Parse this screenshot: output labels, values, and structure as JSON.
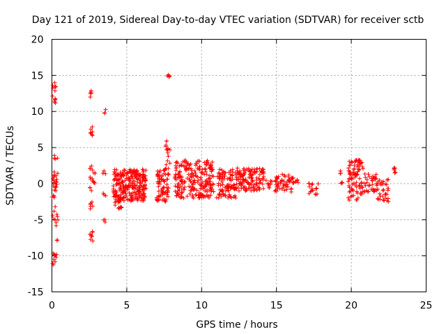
{
  "chart_data": {
    "type": "scatter",
    "title": "Day 121 of 2019, Sidereal Day-to-day VTEC variation (SDTVAR) for receiver sctb",
    "xlabel": "GPS time / hours",
    "ylabel": "SDTVAR / TECUs",
    "xlim": [
      0,
      25
    ],
    "ylim": [
      -15,
      20
    ],
    "xticks": [
      0,
      5,
      10,
      15,
      20,
      25
    ],
    "yticks": [
      -15,
      -10,
      -5,
      0,
      5,
      10,
      15,
      20
    ],
    "grid": true,
    "marker": "+",
    "color": "#ff0000",
    "series": [
      {
        "name": "SDTVAR",
        "clusters": [
          {
            "x": [
              0.0,
              0.3
            ],
            "y": [
              10.5,
              14.0
            ],
            "n": 12
          },
          {
            "x": [
              0.0,
              0.4
            ],
            "y": [
              -1.0,
              4.2
            ],
            "n": 22
          },
          {
            "x": [
              0.0,
              0.2
            ],
            "y": [
              -2.3,
              -1.5
            ],
            "n": 4
          },
          {
            "x": [
              0.05,
              0.4
            ],
            "y": [
              -7.0,
              -3.0
            ],
            "n": 10
          },
          {
            "x": [
              0.05,
              0.45
            ],
            "y": [
              -11.8,
              -9.5
            ],
            "n": 10
          },
          {
            "x": [
              0.2,
              0.4
            ],
            "y": [
              -8.2,
              -7.8
            ],
            "n": 2
          },
          {
            "x": [
              2.5,
              2.7
            ],
            "y": [
              12.0,
              13.0
            ],
            "n": 5
          },
          {
            "x": [
              2.5,
              2.8
            ],
            "y": [
              6.5,
              8.0
            ],
            "n": 7
          },
          {
            "x": [
              2.5,
              2.9
            ],
            "y": [
              -1.0,
              2.5
            ],
            "n": 16
          },
          {
            "x": [
              2.5,
              2.8
            ],
            "y": [
              -3.8,
              -2.5
            ],
            "n": 6
          },
          {
            "x": [
              2.5,
              2.8
            ],
            "y": [
              -8.0,
              -6.0
            ],
            "n": 8
          },
          {
            "x": [
              3.4,
              3.6
            ],
            "y": [
              9.5,
              10.3
            ],
            "n": 3
          },
          {
            "x": [
              3.4,
              3.6
            ],
            "y": [
              1.2,
              1.8
            ],
            "n": 3
          },
          {
            "x": [
              3.4,
              3.6
            ],
            "y": [
              -1.7,
              -1.3
            ],
            "n": 3
          },
          {
            "x": [
              3.4,
              3.6
            ],
            "y": [
              -5.6,
              -5.0
            ],
            "n": 3
          },
          {
            "x": [
              4.1,
              6.3
            ],
            "y": [
              -2.4,
              2.0
            ],
            "n": 260
          },
          {
            "x": [
              4.2,
              4.7
            ],
            "y": [
              -3.5,
              -2.0
            ],
            "n": 15
          },
          {
            "x": [
              7.0,
              7.8
            ],
            "y": [
              -2.5,
              2.3
            ],
            "n": 75
          },
          {
            "x": [
              7.6,
              7.9
            ],
            "y": [
              2.5,
              6.0
            ],
            "n": 14
          },
          {
            "x": [
              7.7,
              7.9
            ],
            "y": [
              14.6,
              15.1
            ],
            "n": 6
          },
          {
            "x": [
              8.2,
              10.8
            ],
            "y": [
              -2.0,
              3.3
            ],
            "n": 230
          },
          {
            "x": [
              11.0,
              12.3
            ],
            "y": [
              -2.0,
              2.0
            ],
            "n": 90
          },
          {
            "x": [
              12.3,
              14.2
            ],
            "y": [
              -1.0,
              2.2
            ],
            "n": 130
          },
          {
            "x": [
              14.3,
              14.7
            ],
            "y": [
              -0.6,
              0.6
            ],
            "n": 10
          },
          {
            "x": [
              14.9,
              16.0
            ],
            "y": [
              -1.4,
              1.3
            ],
            "n": 50
          },
          {
            "x": [
              16.0,
              16.5
            ],
            "y": [
              0.0,
              1.3
            ],
            "n": 12
          },
          {
            "x": [
              17.1,
              17.8
            ],
            "y": [
              -1.6,
              0.3
            ],
            "n": 16
          },
          {
            "x": [
              19.1,
              19.3
            ],
            "y": [
              1.4,
              2.0
            ],
            "n": 3
          },
          {
            "x": [
              19.3,
              19.4
            ],
            "y": [
              -0.6,
              0.3
            ],
            "n": 3
          },
          {
            "x": [
              19.8,
              20.8
            ],
            "y": [
              -2.3,
              3.3
            ],
            "n": 90
          },
          {
            "x": [
              20.8,
              21.7
            ],
            "y": [
              -1.2,
              1.4
            ],
            "n": 35
          },
          {
            "x": [
              21.7,
              22.5
            ],
            "y": [
              -2.5,
              0.6
            ],
            "n": 35
          },
          {
            "x": [
              22.8,
              23.1
            ],
            "y": [
              1.2,
              2.2
            ],
            "n": 6
          }
        ]
      }
    ]
  }
}
